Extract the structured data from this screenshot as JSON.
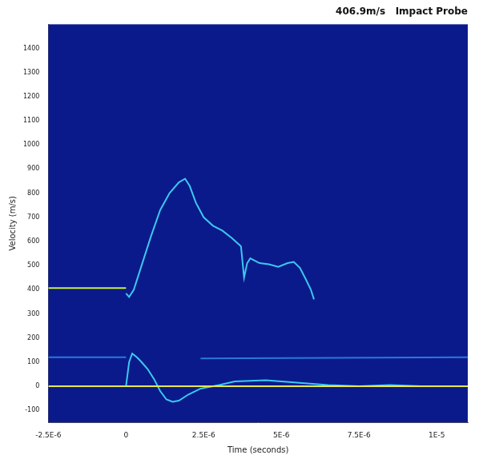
{
  "chart_data": {
    "type": "line",
    "title": "406.9m/s   Impact Probe",
    "x_label": "Time (seconds)",
    "y_label": "Velocity (m/s)",
    "xlim": [
      -2.5e-06,
      1.1e-05
    ],
    "xticks": [
      {
        "value": -2.5e-06,
        "label": "-2.5E-6"
      },
      0,
      {
        "value": 2.5e-06,
        "label": "2.5E-6"
      },
      {
        "value": 5e-06,
        "label": "5E-6"
      },
      {
        "value": 7.5e-06,
        "label": "7.5E-6"
      },
      {
        "value": 1e-05,
        "label": "1E-5"
      }
    ],
    "ylim": [
      -150,
      1500
    ],
    "yticks": [
      -100,
      0,
      100,
      200,
      300,
      400,
      500,
      600,
      700,
      800,
      900,
      1000,
      1100,
      1200,
      1300,
      1400
    ],
    "grid": false,
    "series": [
      {
        "color": "#c8f03c",
        "x": [
          -2.5e-06,
          0
        ],
        "values": [
          407,
          407
        ]
      },
      {
        "color": "#e6e84a",
        "x": [
          -2.5e-06,
          1.1e-05
        ],
        "values": [
          0,
          0
        ]
      },
      {
        "color": "#2a78e0",
        "x": [
          -2.5e-06,
          0,
          1e-06,
          2.4e-06,
          1.1e-05
        ],
        "values": [
          120,
          120,
          null,
          115,
          120
        ]
      },
      {
        "color": "#3cc8f0",
        "x": [
          0,
          1e-07,
          2.5e-07,
          5e-07,
          8e-07,
          1.1e-06,
          1.4e-06,
          1.7e-06,
          1.9e-06,
          2.05e-06,
          2.25e-06,
          2.5e-06,
          2.8e-06,
          3.1e-06,
          3.4e-06,
          3.7e-06,
          3.8e-06,
          3.9e-06,
          4e-06,
          4.3e-06,
          4.6e-06,
          4.9e-06,
          5.2e-06,
          5.4e-06,
          5.6e-06,
          5.8e-06,
          5.95e-06,
          6.05e-06
        ],
        "values": [
          385,
          370,
          400,
          500,
          620,
          730,
          800,
          845,
          860,
          830,
          760,
          700,
          665,
          645,
          615,
          580,
          450,
          510,
          530,
          510,
          505,
          495,
          510,
          515,
          490,
          440,
          400,
          360
        ]
      },
      {
        "color": "#3cc8f0",
        "x": [
          0,
          1e-07,
          2e-07,
          3.5e-07,
          5e-07,
          7e-07,
          9e-07,
          1.1e-06,
          1.3e-06,
          1.5e-06,
          1.7e-06,
          2e-06,
          2.4e-06,
          3e-06,
          3.5e-06,
          4.5e-06,
          5.5e-06,
          6.5e-06,
          7.5e-06,
          8.5e-06,
          9.5e-06,
          1.1e-05
        ],
        "values": [
          0,
          100,
          135,
          120,
          100,
          70,
          30,
          -20,
          -55,
          -65,
          -60,
          -35,
          -10,
          5,
          20,
          25,
          15,
          5,
          0,
          5,
          0,
          0
        ]
      }
    ]
  }
}
